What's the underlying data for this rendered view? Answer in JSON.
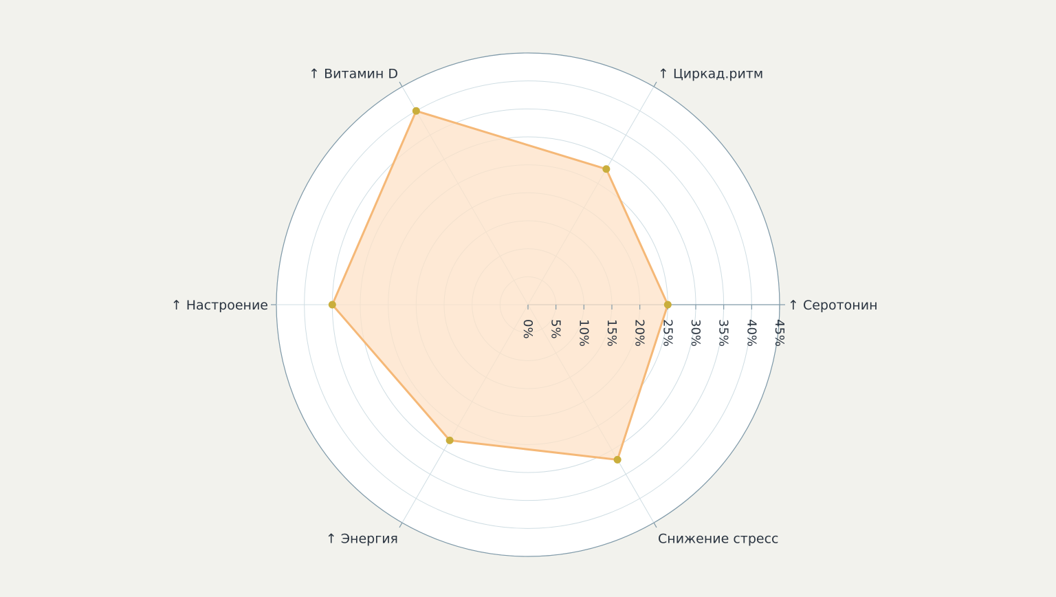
{
  "chart_data": {
    "type": "radar",
    "title": "",
    "categories": [
      "↑ Серотонин",
      "↑ Циркад.ритм",
      "↑ Витамин D",
      "↑ Настроение",
      "↑ Энергия",
      "Снижение стресс"
    ],
    "series": [
      {
        "values": [
          25,
          28,
          40,
          35,
          28,
          32
        ]
      }
    ],
    "radial_axis": {
      "ticks": [
        0,
        5,
        10,
        15,
        20,
        25,
        30,
        35,
        40,
        45
      ],
      "tick_labels": [
        "0%",
        "5%",
        "10%",
        "15%",
        "20%",
        "25%",
        "30%",
        "35%",
        "40%",
        "45%"
      ],
      "range": [
        0,
        45
      ]
    },
    "grid": true,
    "legend": "none",
    "colors": {
      "background": "#f2f2ed",
      "plot_background": "#ffffff",
      "fill": "#fde2c7",
      "line": "#f5b877",
      "marker": "#c9ae3c",
      "grid": "#cfdde3",
      "axis": "#7f99a8",
      "text": "#2a3440"
    }
  }
}
